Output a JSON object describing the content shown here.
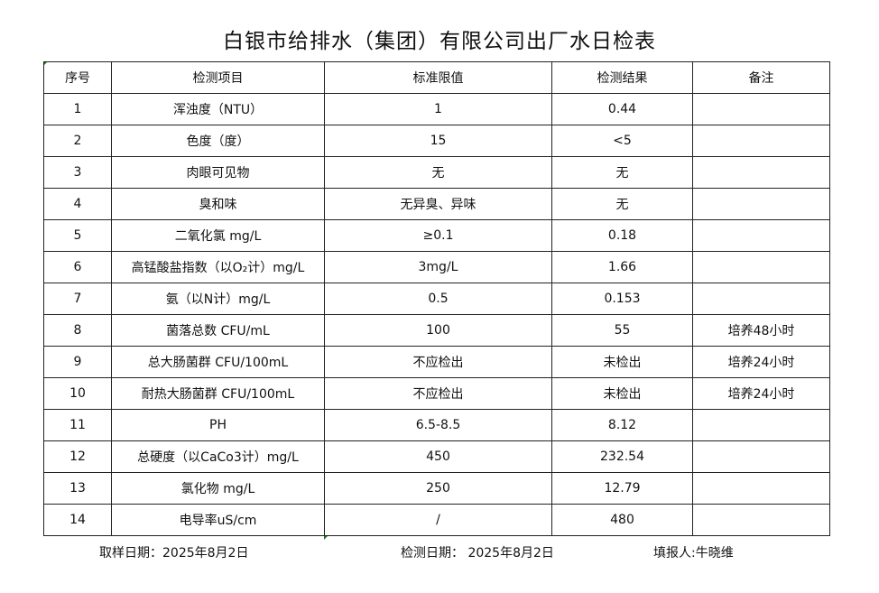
{
  "title": "白银市给排水（集团）有限公司出厂水日检表",
  "headers": [
    "序号",
    "检测项目",
    "标准限值",
    "检测结果",
    "备注"
  ],
  "rows": [
    {
      "no": "1",
      "item": "浑浊度（NTU）",
      "limit": "1",
      "result": "0.44",
      "note": ""
    },
    {
      "no": "2",
      "item": "色度（度）",
      "limit": "15",
      "result": "<5",
      "note": ""
    },
    {
      "no": "3",
      "item": "肉眼可见物",
      "limit": "无",
      "result": "无",
      "note": ""
    },
    {
      "no": "4",
      "item": "臭和味",
      "limit": "无异臭、异味",
      "result": "无",
      "note": ""
    },
    {
      "no": "5",
      "item": "二氧化氯 mg/L",
      "limit": "≥0.1",
      "result": "0.18",
      "note": ""
    },
    {
      "no": "6",
      "item": "高锰酸盐指数（以O₂计）mg/L",
      "limit": "3mg/L",
      "result": "1.66",
      "note": ""
    },
    {
      "no": "7",
      "item": "氨（以N计）mg/L",
      "limit": "0.5",
      "result": "0.153",
      "note": ""
    },
    {
      "no": "8",
      "item": "菌落总数 CFU/mL",
      "limit": "100",
      "result": "55",
      "note": "培养48小时"
    },
    {
      "no": "9",
      "item": "总大肠菌群 CFU/100mL",
      "limit": "不应检出",
      "result": "未检出",
      "note": "培养24小时"
    },
    {
      "no": "10",
      "item": "耐热大肠菌群 CFU/100mL",
      "limit": "不应检出",
      "result": "未检出",
      "note": "培养24小时"
    },
    {
      "no": "11",
      "item": "PH",
      "limit": "6.5-8.5",
      "result": "8.12",
      "note": ""
    },
    {
      "no": "12",
      "item": "总硬度（以CaCo3计）mg/L",
      "limit": "450",
      "result": "232.54",
      "note": ""
    },
    {
      "no": "13",
      "item": "氯化物 mg/L",
      "limit": "250",
      "result": "12.79",
      "note": ""
    },
    {
      "no": "14",
      "item": "电导率uS/cm",
      "limit": "/",
      "result": "480",
      "note": ""
    }
  ],
  "footer": {
    "sample_date": "取样日期：2025年8月2日",
    "test_date": "检测日期：  2025年8月2日",
    "reporter": "填报人:牛晓维"
  }
}
